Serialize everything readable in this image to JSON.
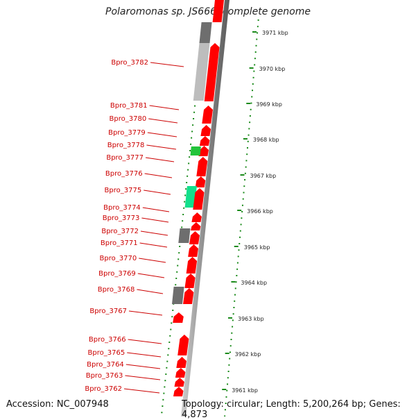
{
  "title": "Polaromonas sp. JS666, complete genome",
  "footer": {
    "accession": "Accession: NC_007948",
    "summary": "Topology: circular; Length: 5,200,264 bp; Genes: 4,873"
  },
  "colors": {
    "forward_gene": "#ff0000",
    "reverse_gene": "#ff0000",
    "pseudo_dark": "#6e6e6e",
    "pseudo_light": "#bdbdbd",
    "rna_green": "#22c43a",
    "rna_teal": "#12e08c",
    "scale_tick": "#1a8a1a",
    "label_color": "#cc0000"
  },
  "kbp_labels": [
    "3971 kbp",
    "3970 kbp",
    "3969 kbp",
    "3968 kbp",
    "3967 kbp",
    "3966 kbp",
    "3965 kbp",
    "3964 kbp",
    "3963 kbp",
    "3962 kbp",
    "3961 kbp"
  ],
  "gene_labels": [
    "Bpro_3782",
    "Bpro_3781",
    "Bpro_3780",
    "Bpro_3779",
    "Bpro_3778",
    "Bpro_3777",
    "Bpro_3776",
    "Bpro_3775",
    "Bpro_3774",
    "Bpro_3773",
    "Bpro_3772",
    "Bpro_3771",
    "Bpro_3770",
    "Bpro_3769",
    "Bpro_3768",
    "Bpro_3767",
    "Bpro_3766",
    "Bpro_3765",
    "Bpro_3764",
    "Bpro_3763",
    "Bpro_3762"
  ]
}
